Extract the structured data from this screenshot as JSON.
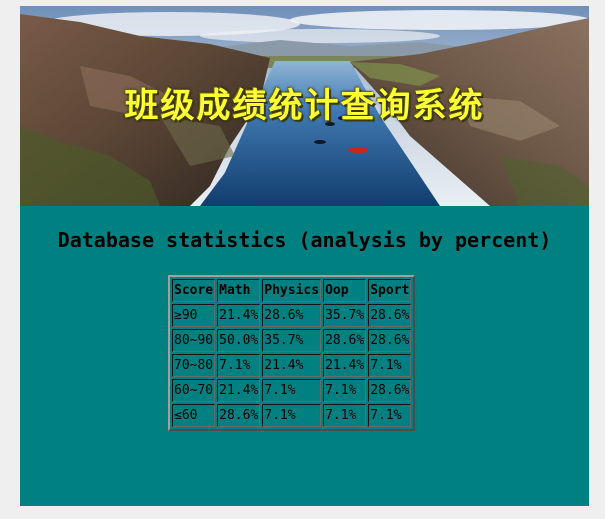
{
  "banner": {
    "title": "班级成绩统计查询系统",
    "image": "landscape-river-photo"
  },
  "heading": "Database statistics (analysis by percent)",
  "table": {
    "headers": [
      "Score",
      "Math",
      "Physics",
      "Oop",
      "Sport"
    ],
    "rows": [
      [
        "≥90",
        "21.4%",
        "28.6%",
        "35.7%",
        "28.6%"
      ],
      [
        "80~90",
        "50.0%",
        "35.7%",
        "28.6%",
        "28.6%"
      ],
      [
        "70~80",
        "7.1%",
        "21.4%",
        "21.4%",
        "7.1%"
      ],
      [
        "60~70",
        "21.4%",
        "7.1%",
        "7.1%",
        "28.6%"
      ],
      [
        "≤60",
        "28.6%",
        "7.1%",
        "7.1%",
        "7.1%"
      ]
    ]
  },
  "colors": {
    "page_background": "#efefef",
    "panel_background": "#008080",
    "title_color": "#ffff33"
  }
}
